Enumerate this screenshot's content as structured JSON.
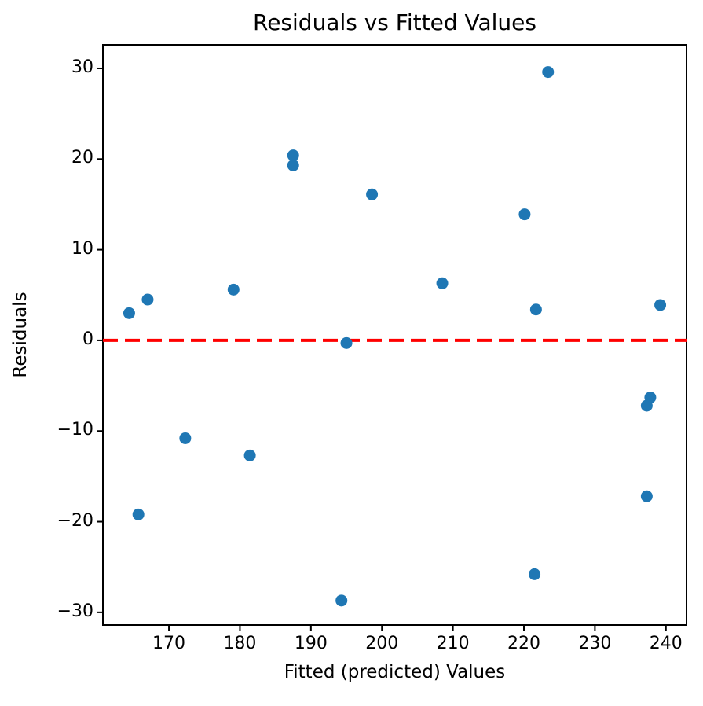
{
  "chart_data": {
    "type": "scatter",
    "title": "Residuals vs Fitted Values",
    "xlabel": "Fitted (predicted) Values",
    "ylabel": "Residuals",
    "xlim": [
      160.7,
      242.9
    ],
    "ylim": [
      -31.4,
      32.6
    ],
    "x_ticks": [
      170,
      180,
      190,
      200,
      210,
      220,
      230,
      240
    ],
    "y_ticks": [
      -30,
      -20,
      -10,
      0,
      10,
      20,
      30
    ],
    "grid": false,
    "legend": null,
    "marker_color": "#1f77b4",
    "marker_radius_px": 7.5,
    "spine_color": "#000000",
    "background_color": "#ffffff",
    "zero_line": {
      "y": 0,
      "color": "#ff0000",
      "style": "dashed"
    },
    "points": [
      [
        164.4,
        3.0
      ],
      [
        167.0,
        4.5
      ],
      [
        179.1,
        5.6
      ],
      [
        172.3,
        -10.8
      ],
      [
        181.4,
        -12.7
      ],
      [
        165.7,
        -19.2
      ],
      [
        187.5,
        20.4
      ],
      [
        187.5,
        19.3
      ],
      [
        198.6,
        16.1
      ],
      [
        195.0,
        -0.3
      ],
      [
        194.3,
        -28.7
      ],
      [
        208.5,
        6.3
      ],
      [
        223.4,
        29.6
      ],
      [
        220.1,
        13.9
      ],
      [
        221.7,
        3.4
      ],
      [
        221.5,
        -25.8
      ],
      [
        239.2,
        3.9
      ],
      [
        237.8,
        -6.3
      ],
      [
        237.3,
        -7.2
      ],
      [
        237.3,
        -17.2
      ]
    ]
  }
}
